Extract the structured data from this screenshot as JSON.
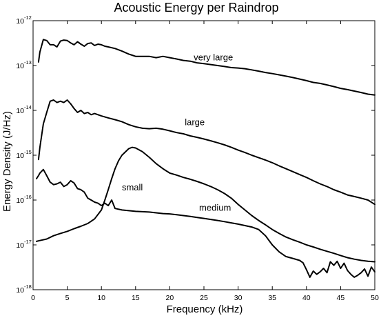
{
  "chart_data": {
    "type": "line",
    "title": "Acoustic Energy per Raindrop",
    "xlabel": "Frequency (kHz)",
    "ylabel": "Energy Density (J/Hz)",
    "xlim": [
      0,
      50
    ],
    "ylim": [
      1e-18,
      1e-12
    ],
    "yscale": "log",
    "grid": false,
    "legend": "none",
    "x_ticks": [
      {
        "value": 0,
        "label": "0"
      },
      {
        "value": 5,
        "label": "5"
      },
      {
        "value": 10,
        "label": "10"
      },
      {
        "value": 15,
        "label": "15"
      },
      {
        "value": 20,
        "label": "20"
      },
      {
        "value": 25,
        "label": "25"
      },
      {
        "value": 30,
        "label": "30"
      },
      {
        "value": 35,
        "label": "35"
      },
      {
        "value": 40,
        "label": "40"
      },
      {
        "value": 45,
        "label": "45"
      },
      {
        "value": 50,
        "label": "50"
      }
    ],
    "y_ticks": [
      {
        "value": 1e-12,
        "base": "10",
        "exp": "-12"
      },
      {
        "value": 1e-13,
        "base": "10",
        "exp": "-13"
      },
      {
        "value": 1e-14,
        "base": "10",
        "exp": "-14"
      },
      {
        "value": 1e-15,
        "base": "10",
        "exp": "-15"
      },
      {
        "value": 1e-16,
        "base": "10",
        "exp": "-16"
      },
      {
        "value": 1e-17,
        "base": "10",
        "exp": "-17"
      },
      {
        "value": 1e-18,
        "base": "10",
        "exp": "-18"
      }
    ],
    "series": [
      {
        "name": "very large",
        "label_at": [
          23.5,
          1.5e-13
        ],
        "points": [
          [
            0.8,
            1.2e-13
          ],
          [
            1.0,
            2e-13
          ],
          [
            1.5,
            3.8e-13
          ],
          [
            2.0,
            3.6e-13
          ],
          [
            2.5,
            2.9e-13
          ],
          [
            3.0,
            2.9e-13
          ],
          [
            3.5,
            2.6e-13
          ],
          [
            4.0,
            3.5e-13
          ],
          [
            4.5,
            3.7e-13
          ],
          [
            5.0,
            3.6e-13
          ],
          [
            5.5,
            3.2e-13
          ],
          [
            6.0,
            2.9e-13
          ],
          [
            6.5,
            3.4e-13
          ],
          [
            7.0,
            3e-13
          ],
          [
            7.5,
            2.7e-13
          ],
          [
            8.0,
            3.1e-13
          ],
          [
            8.5,
            3.2e-13
          ],
          [
            9.0,
            2.8e-13
          ],
          [
            9.5,
            3e-13
          ],
          [
            10.0,
            2.9e-13
          ],
          [
            10.5,
            2.7e-13
          ],
          [
            11.0,
            2.6e-13
          ],
          [
            12.0,
            2.4e-13
          ],
          [
            13.0,
            2.1e-13
          ],
          [
            14.0,
            1.8e-13
          ],
          [
            14.5,
            1.7e-13
          ],
          [
            15.0,
            1.6e-13
          ],
          [
            16.0,
            1.6e-13
          ],
          [
            17.0,
            1.6e-13
          ],
          [
            18.0,
            1.5e-13
          ],
          [
            19.0,
            1.6e-13
          ],
          [
            20.0,
            1.5e-13
          ],
          [
            21.0,
            1.4e-13
          ],
          [
            22.0,
            1.3e-13
          ],
          [
            23.0,
            1.25e-13
          ],
          [
            24.0,
            1.15e-13
          ],
          [
            25.0,
            1.1e-13
          ],
          [
            26.0,
            1.05e-13
          ],
          [
            27.0,
            1e-13
          ],
          [
            28.0,
            9.5e-14
          ],
          [
            29.0,
            9e-14
          ],
          [
            30.0,
            8.8e-14
          ],
          [
            31.0,
            8.5e-14
          ],
          [
            32.0,
            8e-14
          ],
          [
            33.0,
            7.5e-14
          ],
          [
            34.0,
            7e-14
          ],
          [
            35.0,
            6.6e-14
          ],
          [
            36.0,
            6.2e-14
          ],
          [
            37.0,
            5.8e-14
          ],
          [
            38.0,
            5.4e-14
          ],
          [
            39.0,
            5e-14
          ],
          [
            40.0,
            4.6e-14
          ],
          [
            41.0,
            4.2e-14
          ],
          [
            42.0,
            4e-14
          ],
          [
            43.0,
            3.7e-14
          ],
          [
            44.0,
            3.4e-14
          ],
          [
            45.0,
            3.1e-14
          ],
          [
            46.0,
            2.9e-14
          ],
          [
            47.0,
            2.7e-14
          ],
          [
            48.0,
            2.5e-14
          ],
          [
            49.0,
            2.3e-14
          ],
          [
            50.0,
            2.2e-14
          ]
        ]
      },
      {
        "name": "large",
        "label_at": [
          22.2,
          5.4e-15
        ],
        "points": [
          [
            0.8,
            8e-16
          ],
          [
            1.0,
            1.5e-15
          ],
          [
            1.5,
            5e-15
          ],
          [
            2.0,
            9e-15
          ],
          [
            2.5,
            1.6e-14
          ],
          [
            3.0,
            1.7e-14
          ],
          [
            3.5,
            1.5e-14
          ],
          [
            4.0,
            1.6e-14
          ],
          [
            4.5,
            1.5e-14
          ],
          [
            5.0,
            1.7e-14
          ],
          [
            5.5,
            1.4e-14
          ],
          [
            6.0,
            1.1e-14
          ],
          [
            6.5,
            9e-15
          ],
          [
            7.0,
            1e-14
          ],
          [
            7.5,
            8.5e-15
          ],
          [
            8.0,
            9e-15
          ],
          [
            8.5,
            8e-15
          ],
          [
            9.0,
            8.5e-15
          ],
          [
            10.0,
            7.5e-15
          ],
          [
            11.0,
            6.8e-15
          ],
          [
            12.0,
            6.2e-15
          ],
          [
            13.0,
            5.6e-15
          ],
          [
            14.0,
            4.8e-15
          ],
          [
            15.0,
            4.3e-15
          ],
          [
            16.0,
            4e-15
          ],
          [
            17.0,
            3.9e-15
          ],
          [
            18.0,
            4e-15
          ],
          [
            19.0,
            3.8e-15
          ],
          [
            20.0,
            3.5e-15
          ],
          [
            21.0,
            3.2e-15
          ],
          [
            22.0,
            3e-15
          ],
          [
            23.0,
            2.7e-15
          ],
          [
            24.0,
            2.5e-15
          ],
          [
            25.0,
            2.3e-15
          ],
          [
            26.0,
            2.1e-15
          ],
          [
            27.0,
            1.9e-15
          ],
          [
            28.0,
            1.7e-15
          ],
          [
            29.0,
            1.5e-15
          ],
          [
            30.0,
            1.3e-15
          ],
          [
            31.0,
            1.15e-15
          ],
          [
            32.0,
            1e-15
          ],
          [
            33.0,
            8.8e-16
          ],
          [
            34.0,
            7.8e-16
          ],
          [
            35.0,
            6.8e-16
          ],
          [
            36.0,
            5.8e-16
          ],
          [
            37.0,
            5e-16
          ],
          [
            38.0,
            4.3e-16
          ],
          [
            39.0,
            3.7e-16
          ],
          [
            40.0,
            3.2e-16
          ],
          [
            41.0,
            2.7e-16
          ],
          [
            42.0,
            2.3e-16
          ],
          [
            43.0,
            2e-16
          ],
          [
            44.0,
            1.7e-16
          ],
          [
            45.0,
            1.5e-16
          ],
          [
            46.0,
            1.3e-16
          ],
          [
            47.0,
            1.2e-16
          ],
          [
            48.0,
            1.1e-16
          ],
          [
            49.0,
            1e-16
          ],
          [
            50.0,
            8e-17
          ]
        ]
      },
      {
        "name": "small",
        "label_at": [
          13.0,
          1.9e-16
        ],
        "points": [
          [
            0.5,
            1.2e-17
          ],
          [
            1.0,
            1.25e-17
          ],
          [
            2.0,
            1.35e-17
          ],
          [
            3.0,
            1.6e-17
          ],
          [
            4.0,
            1.8e-17
          ],
          [
            5.0,
            2e-17
          ],
          [
            6.0,
            2.3e-17
          ],
          [
            7.0,
            2.6e-17
          ],
          [
            8.0,
            3e-17
          ],
          [
            9.0,
            3.8e-17
          ],
          [
            10.0,
            6e-17
          ],
          [
            10.5,
            1e-16
          ],
          [
            11.0,
            1.7e-16
          ],
          [
            11.5,
            3e-16
          ],
          [
            12.0,
            5e-16
          ],
          [
            12.5,
            7.5e-16
          ],
          [
            13.0,
            1e-15
          ],
          [
            14.0,
            1.4e-15
          ],
          [
            14.5,
            1.5e-15
          ],
          [
            15.0,
            1.45e-15
          ],
          [
            16.0,
            1.2e-15
          ],
          [
            17.0,
            9e-16
          ],
          [
            18.0,
            6.5e-16
          ],
          [
            19.0,
            5e-16
          ],
          [
            20.0,
            4e-16
          ],
          [
            21.0,
            3.6e-16
          ],
          [
            22.0,
            3.2e-16
          ],
          [
            23.0,
            2.9e-16
          ],
          [
            24.0,
            2.6e-16
          ],
          [
            25.0,
            2.3e-16
          ],
          [
            26.0,
            2e-16
          ],
          [
            27.0,
            1.7e-16
          ],
          [
            28.0,
            1.4e-16
          ],
          [
            29.0,
            1.1e-16
          ],
          [
            30.0,
            8e-17
          ],
          [
            31.0,
            6e-17
          ],
          [
            32.0,
            4.5e-17
          ],
          [
            33.0,
            3.5e-17
          ],
          [
            34.0,
            2.8e-17
          ],
          [
            35.0,
            2.2e-17
          ],
          [
            36.0,
            1.8e-17
          ],
          [
            37.0,
            1.5e-17
          ],
          [
            38.0,
            1.3e-17
          ],
          [
            39.0,
            1.15e-17
          ],
          [
            40.0,
            1e-17
          ],
          [
            41.0,
            9e-18
          ],
          [
            42.0,
            8e-18
          ],
          [
            43.0,
            7.2e-18
          ],
          [
            44.0,
            6.5e-18
          ],
          [
            45.0,
            5.8e-18
          ],
          [
            46.0,
            5.2e-18
          ],
          [
            47.0,
            4.8e-18
          ],
          [
            48.0,
            4.5e-18
          ],
          [
            49.0,
            4.3e-18
          ],
          [
            50.0,
            4.2e-18
          ]
        ]
      },
      {
        "name": "medium",
        "label_at": [
          24.3,
          6.7e-17
        ],
        "points": [
          [
            0.5,
            3e-16
          ],
          [
            0.8,
            3.5e-16
          ],
          [
            1.0,
            4e-16
          ],
          [
            1.5,
            4.8e-16
          ],
          [
            2.0,
            3.5e-16
          ],
          [
            2.5,
            2.5e-16
          ],
          [
            3.0,
            2.2e-16
          ],
          [
            3.5,
            2.3e-16
          ],
          [
            4.0,
            2.5e-16
          ],
          [
            4.5,
            2e-16
          ],
          [
            5.0,
            2.2e-16
          ],
          [
            5.5,
            2.7e-16
          ],
          [
            6.0,
            2.4e-16
          ],
          [
            6.5,
            1.8e-16
          ],
          [
            7.0,
            1.7e-16
          ],
          [
            7.5,
            1.5e-16
          ],
          [
            8.0,
            1.1e-16
          ],
          [
            8.5,
            1e-16
          ],
          [
            9.0,
            9e-17
          ],
          [
            9.5,
            8.5e-17
          ],
          [
            10.0,
            7.5e-17
          ],
          [
            10.5,
            8.5e-17
          ],
          [
            11.0,
            7.5e-17
          ],
          [
            11.5,
            1e-16
          ],
          [
            12.0,
            6.5e-17
          ],
          [
            13.0,
            6e-17
          ],
          [
            14.0,
            5.8e-17
          ],
          [
            15.0,
            5.6e-17
          ],
          [
            16.0,
            5.5e-17
          ],
          [
            17.0,
            5.4e-17
          ],
          [
            18.0,
            5.2e-17
          ],
          [
            19.0,
            5e-17
          ],
          [
            20.0,
            4.9e-17
          ],
          [
            21.0,
            4.7e-17
          ],
          [
            22.0,
            4.5e-17
          ],
          [
            23.0,
            4.3e-17
          ],
          [
            24.0,
            4.1e-17
          ],
          [
            25.0,
            3.9e-17
          ],
          [
            26.0,
            3.7e-17
          ],
          [
            27.0,
            3.5e-17
          ],
          [
            28.0,
            3.3e-17
          ],
          [
            29.0,
            3.1e-17
          ],
          [
            30.0,
            2.9e-17
          ],
          [
            31.0,
            2.7e-17
          ],
          [
            32.0,
            2.5e-17
          ],
          [
            33.0,
            2.2e-17
          ],
          [
            34.0,
            1.6e-17
          ],
          [
            35.0,
            1e-17
          ],
          [
            36.0,
            7e-18
          ],
          [
            37.0,
            5.5e-18
          ],
          [
            38.0,
            5e-18
          ],
          [
            39.0,
            4.5e-18
          ],
          [
            39.5,
            4e-18
          ],
          [
            40.0,
            2.8e-18
          ],
          [
            40.5,
            1.9e-18
          ],
          [
            41.0,
            2.6e-18
          ],
          [
            41.5,
            2.2e-18
          ],
          [
            42.0,
            2.5e-18
          ],
          [
            42.5,
            3e-18
          ],
          [
            43.0,
            2.4e-18
          ],
          [
            43.5,
            4.2e-18
          ],
          [
            44.0,
            3.5e-18
          ],
          [
            44.5,
            4.3e-18
          ],
          [
            45.0,
            3e-18
          ],
          [
            45.5,
            3.9e-18
          ],
          [
            46.0,
            2.7e-18
          ],
          [
            46.5,
            2.2e-18
          ],
          [
            47.0,
            1.9e-18
          ],
          [
            47.5,
            2.1e-18
          ],
          [
            48.0,
            2.4e-18
          ],
          [
            48.5,
            2.9e-18
          ],
          [
            49.0,
            2e-18
          ],
          [
            49.5,
            3.2e-18
          ],
          [
            50.0,
            2.5e-18
          ]
        ]
      }
    ]
  }
}
